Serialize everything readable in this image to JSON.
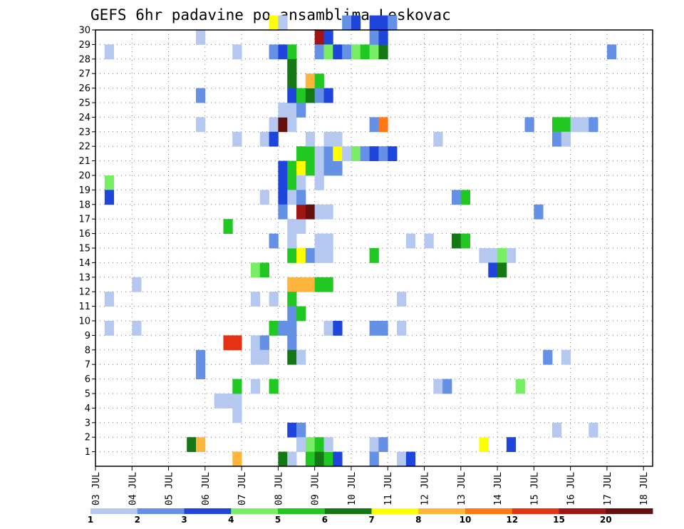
{
  "chart_data": {
    "type": "heatmap",
    "title": "GEFS 6hr padavine po ansamblima Leskovac",
    "xlabel": "",
    "ylabel": "",
    "x_ticks": [
      "03 JUL",
      "04 JUL",
      "05 JUL",
      "06 JUL",
      "07 JUL",
      "08 JUL",
      "09 JUL",
      "10 JUL",
      "11 JUL",
      "12 JUL",
      "13 JUL",
      "14 JUL",
      "15 JUL",
      "16 JUL",
      "17 JUL",
      "18 JUL"
    ],
    "y_ticks": [
      1,
      2,
      3,
      4,
      5,
      6,
      7,
      8,
      9,
      10,
      11,
      12,
      13,
      14,
      15,
      16,
      17,
      18,
      19,
      20,
      21,
      22,
      23,
      24,
      25,
      26,
      27,
      28,
      29,
      30
    ],
    "x_range": [
      0,
      61
    ],
    "y_range": [
      0,
      30
    ],
    "steps_per_day": 4,
    "grid": true,
    "colors": [
      "#b4c8f0",
      "#6490e6",
      "#1e46dc",
      "#78ee64",
      "#22c822",
      "#147814",
      "#ffff00",
      "#ffb43c",
      "#ff7814",
      "#e63214",
      "#a01414",
      "#641010"
    ],
    "legend": {
      "position": "bottom",
      "labels": [
        "1",
        "2",
        "3",
        "4",
        "5",
        "6",
        "7",
        "8",
        "10",
        "12",
        "15",
        "20"
      ]
    },
    "cells": [
      [
        1,
        28,
        0
      ],
      [
        1,
        19,
        3
      ],
      [
        1,
        18,
        2
      ],
      [
        1,
        11,
        0
      ],
      [
        1,
        9,
        0
      ],
      [
        4,
        12,
        0
      ],
      [
        4,
        9,
        0
      ],
      [
        11,
        29,
        0
      ],
      [
        11,
        25,
        1
      ],
      [
        11,
        23,
        0
      ],
      [
        11,
        7,
        1
      ],
      [
        11,
        6,
        1
      ],
      [
        10,
        1,
        5
      ],
      [
        11,
        1,
        7
      ],
      [
        14,
        16,
        4
      ],
      [
        14,
        8,
        9
      ],
      [
        15,
        8,
        9
      ],
      [
        13,
        4,
        0
      ],
      [
        14,
        4,
        0
      ],
      [
        15,
        4,
        0
      ],
      [
        15,
        3,
        0
      ],
      [
        15,
        28,
        0
      ],
      [
        15,
        22,
        0
      ],
      [
        15,
        5,
        4
      ],
      [
        15,
        0,
        7
      ],
      [
        17,
        13,
        3
      ],
      [
        17,
        8,
        0
      ],
      [
        17,
        7,
        0
      ],
      [
        17,
        5,
        0
      ],
      [
        17,
        11,
        0
      ],
      [
        18,
        13,
        4
      ],
      [
        18,
        8,
        1
      ],
      [
        18,
        7,
        0
      ],
      [
        18,
        22,
        0
      ],
      [
        18,
        18,
        0
      ],
      [
        19,
        30,
        6
      ],
      [
        20,
        30,
        0
      ],
      [
        19,
        28,
        1
      ],
      [
        20,
        28,
        2
      ],
      [
        21,
        28,
        4
      ],
      [
        19,
        23,
        0
      ],
      [
        20,
        23,
        11
      ],
      [
        19,
        22,
        2
      ],
      [
        19,
        15,
        1
      ],
      [
        19,
        11,
        0
      ],
      [
        19,
        9,
        4
      ],
      [
        20,
        9,
        1
      ],
      [
        19,
        5,
        4
      ],
      [
        20,
        20,
        2
      ],
      [
        20,
        19,
        2
      ],
      [
        21,
        19,
        4
      ],
      [
        20,
        18,
        2
      ],
      [
        21,
        18,
        0
      ],
      [
        20,
        17,
        1
      ],
      [
        20,
        24,
        0
      ],
      [
        21,
        24,
        0
      ],
      [
        22,
        24,
        1
      ],
      [
        21,
        25,
        2
      ],
      [
        22,
        25,
        4
      ],
      [
        23,
        25,
        5
      ],
      [
        21,
        27,
        5
      ],
      [
        21,
        26,
        5
      ],
      [
        21,
        23,
        0
      ],
      [
        21,
        20,
        4
      ],
      [
        22,
        20,
        6
      ],
      [
        23,
        20,
        7
      ],
      [
        22,
        19,
        0
      ],
      [
        21,
        16,
        0
      ],
      [
        22,
        16,
        0
      ],
      [
        21,
        14,
        4
      ],
      [
        22,
        14,
        6
      ],
      [
        23,
        14,
        1
      ],
      [
        21,
        15,
        0
      ],
      [
        21,
        12,
        7
      ],
      [
        22,
        12,
        7
      ],
      [
        23,
        12,
        7
      ],
      [
        24,
        12,
        4
      ],
      [
        25,
        12,
        4
      ],
      [
        21,
        11,
        4
      ],
      [
        21,
        10,
        1
      ],
      [
        22,
        10,
        4
      ],
      [
        21,
        8,
        1
      ],
      [
        21,
        7,
        5
      ],
      [
        22,
        7,
        0
      ],
      [
        21,
        9,
        1
      ],
      [
        21,
        2,
        2
      ],
      [
        22,
        2,
        1
      ],
      [
        20,
        0,
        5
      ],
      [
        21,
        0,
        0
      ],
      [
        22,
        17,
        10
      ],
      [
        23,
        17,
        11
      ],
      [
        22,
        18,
        1
      ],
      [
        22,
        21,
        4
      ],
      [
        23,
        21,
        4
      ],
      [
        23,
        22,
        0
      ],
      [
        23,
        20,
        4
      ],
      [
        23,
        26,
        7
      ],
      [
        24,
        26,
        4
      ],
      [
        24,
        25,
        1
      ],
      [
        25,
        25,
        2
      ],
      [
        24,
        29,
        10
      ],
      [
        25,
        29,
        2
      ],
      [
        24,
        28,
        1
      ],
      [
        25,
        28,
        3
      ],
      [
        24,
        21,
        0
      ],
      [
        24,
        20,
        0
      ],
      [
        24,
        19,
        0
      ],
      [
        25,
        20,
        1
      ],
      [
        26,
        20,
        1
      ],
      [
        25,
        21,
        1
      ],
      [
        26,
        21,
        6
      ],
      [
        25,
        22,
        0
      ],
      [
        26,
        22,
        0
      ],
      [
        24,
        17,
        0
      ],
      [
        25,
        17,
        0
      ],
      [
        24,
        15,
        0
      ],
      [
        25,
        15,
        0
      ],
      [
        25,
        14,
        0
      ],
      [
        24,
        14,
        0
      ],
      [
        23,
        1,
        3
      ],
      [
        24,
        1,
        4
      ],
      [
        23,
        0,
        4
      ],
      [
        24,
        0,
        5
      ],
      [
        25,
        0,
        4
      ],
      [
        22,
        1,
        0
      ],
      [
        25,
        1,
        0
      ],
      [
        25,
        9,
        0
      ],
      [
        26,
        9,
        2
      ],
      [
        26,
        28,
        2
      ],
      [
        27,
        28,
        1
      ],
      [
        27,
        30,
        1
      ],
      [
        28,
        30,
        2
      ],
      [
        27,
        21,
        0
      ],
      [
        28,
        21,
        3
      ],
      [
        29,
        21,
        1
      ],
      [
        30,
        21,
        2
      ],
      [
        31,
        21,
        1
      ],
      [
        32,
        21,
        2
      ],
      [
        28,
        28,
        3
      ],
      [
        29,
        28,
        4
      ],
      [
        30,
        28,
        3
      ],
      [
        31,
        28,
        5
      ],
      [
        30,
        30,
        2
      ],
      [
        31,
        30,
        2
      ],
      [
        32,
        30,
        1
      ],
      [
        30,
        29,
        1
      ],
      [
        31,
        29,
        2
      ],
      [
        30,
        23,
        1
      ],
      [
        31,
        23,
        8
      ],
      [
        30,
        9,
        1
      ],
      [
        31,
        9,
        1
      ],
      [
        30,
        1,
        0
      ],
      [
        31,
        1,
        1
      ],
      [
        30,
        0,
        1
      ],
      [
        30,
        14,
        4
      ],
      [
        26,
        0,
        2
      ],
      [
        34,
        15,
        0
      ],
      [
        33,
        11,
        0
      ],
      [
        33,
        9,
        0
      ],
      [
        33,
        0,
        0
      ],
      [
        34,
        0,
        2
      ],
      [
        37,
        22,
        0
      ],
      [
        36,
        15,
        0
      ],
      [
        37,
        5,
        0
      ],
      [
        38,
        5,
        1
      ],
      [
        39,
        18,
        1
      ],
      [
        40,
        18,
        4
      ],
      [
        39,
        15,
        5
      ],
      [
        40,
        15,
        4
      ],
      [
        42,
        14,
        0
      ],
      [
        43,
        14,
        0
      ],
      [
        44,
        14,
        3
      ],
      [
        45,
        14,
        0
      ],
      [
        43,
        13,
        2
      ],
      [
        44,
        13,
        5
      ],
      [
        42,
        1,
        6
      ],
      [
        45,
        1,
        2
      ],
      [
        46,
        5,
        3
      ],
      [
        47,
        23,
        1
      ],
      [
        48,
        17,
        1
      ],
      [
        49,
        7,
        1
      ],
      [
        50,
        23,
        4
      ],
      [
        51,
        23,
        4
      ],
      [
        52,
        23,
        0
      ],
      [
        53,
        23,
        0
      ],
      [
        54,
        23,
        1
      ],
      [
        50,
        22,
        1
      ],
      [
        51,
        22,
        0
      ],
      [
        51,
        7,
        0
      ],
      [
        50,
        2,
        0
      ],
      [
        54,
        2,
        0
      ],
      [
        56,
        28,
        1
      ]
    ]
  }
}
